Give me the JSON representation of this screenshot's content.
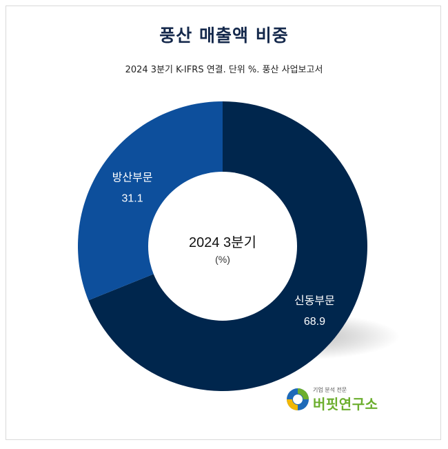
{
  "header": {
    "title": "풍산 매출액 비중",
    "subtitle": "2024 3분기 K-IFRS 연결. 단위 %. 풍산 사업보고서"
  },
  "chart_data": {
    "type": "pie",
    "donut": true,
    "center_label": "2024 3분기",
    "center_sublabel": "(%)",
    "categories": [
      "신동부문",
      "방산부문"
    ],
    "values": [
      68.9,
      31.1
    ],
    "colors": [
      "#00264d",
      "#0d4f9c"
    ]
  },
  "logo": {
    "tagline": "기업 분석 전문",
    "name": "버핏연구소",
    "icon": "buffett-lab-logo-icon"
  }
}
